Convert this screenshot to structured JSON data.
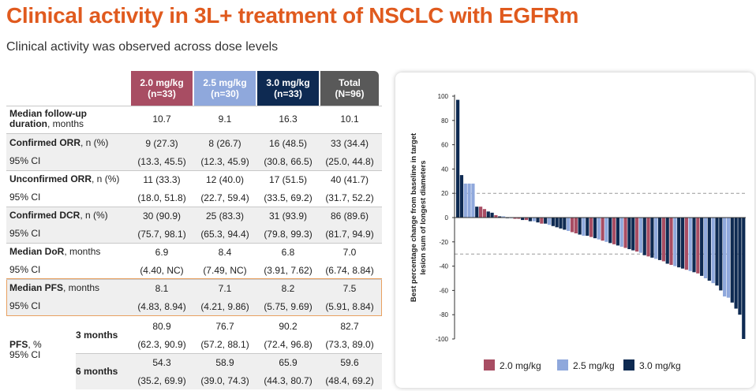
{
  "header": {
    "title": "Clinical activity in 3L+ treatment of NSCLC with EGFRm",
    "subtitle": "Clinical activity was observed across dose levels"
  },
  "table": {
    "columns": [
      {
        "line1": "2.0 mg/kg",
        "line2": "(n=33)",
        "color": "#A84D63"
      },
      {
        "line1": "2.5 mg/kg",
        "line2": "(n=30)",
        "color": "#8FA8DC"
      },
      {
        "line1": "3.0 mg/kg",
        "line2": "(n=33)",
        "color": "#0E2A52"
      },
      {
        "line1": "Total",
        "line2": "(N=96)",
        "color": "#595959"
      }
    ],
    "rows": {
      "followup": {
        "label_bold": "Median follow-up",
        "label_bold2": "duration",
        "label_rest": ", months",
        "values": [
          "10.7",
          "9.1",
          "16.3",
          "10.1"
        ]
      },
      "orr": {
        "label_bold": "Confirmed ORR",
        "label_rest": ", n (%)",
        "values": [
          "9 (27.3)",
          "8 (26.7)",
          "16 (48.5)",
          "33 (34.4)"
        ]
      },
      "orr_ci": {
        "label": "95% CI",
        "values": [
          "(13.3, 45.5)",
          "(12.3, 45.9)",
          "(30.8, 66.5)",
          "(25.0, 44.8)"
        ]
      },
      "uorr": {
        "label_bold": "Unconfirmed ORR",
        "label_rest": ", n (%)",
        "values": [
          "11 (33.3)",
          "12 (40.0)",
          "17 (51.5)",
          "40 (41.7)"
        ]
      },
      "uorr_ci": {
        "label": "95% CI",
        "values": [
          "(18.0, 51.8)",
          "(22.7, 59.4)",
          "(33.5, 69.2)",
          "(31.7, 52.2)"
        ]
      },
      "dcr": {
        "label_bold": "Confirmed DCR",
        "label_rest": ", n (%)",
        "values": [
          "30 (90.9)",
          "25 (83.3)",
          "31 (93.9)",
          "86 (89.6)"
        ]
      },
      "dcr_ci": {
        "label": "95% CI",
        "values": [
          "(75.7, 98.1)",
          "(65.3, 94.4)",
          "(79.8, 99.3)",
          "(81.7, 94.9)"
        ]
      },
      "dor": {
        "label_bold": "Median DoR",
        "label_rest": ", months",
        "values": [
          "6.9",
          "8.4",
          "6.8",
          "7.0"
        ]
      },
      "dor_ci": {
        "label": "95% CI",
        "values": [
          "(4.40, NC)",
          "(7.49, NC)",
          "(3.91, 7.62)",
          "(6.74, 8.84)"
        ]
      },
      "pfs": {
        "label_bold": "Median PFS",
        "label_rest": ", months",
        "values": [
          "8.1",
          "7.1",
          "8.2",
          "7.5"
        ]
      },
      "pfs_ci": {
        "label": "95% CI",
        "values": [
          "(4.83, 8.94)",
          "(4.21, 9.86)",
          "(5.75, 9.69)",
          "(5.91, 8.84)"
        ]
      },
      "pfs_group": {
        "label_bold": "PFS",
        "label_rest": ", %",
        "sublabel": "95% CI"
      },
      "pfs3": {
        "label": "3 months",
        "values": [
          "80.9",
          "76.7",
          "90.2",
          "82.7"
        ]
      },
      "pfs3_ci": {
        "values": [
          "(62.3, 90.9)",
          "(57.2, 88.1)",
          "(72.4, 96.8)",
          "(73.3, 89.0)"
        ]
      },
      "pfs6": {
        "label": "6 months",
        "values": [
          "54.3",
          "58.9",
          "65.9",
          "59.6"
        ]
      },
      "pfs6_ci": {
        "values": [
          "(35.2, 69.9)",
          "(39.0, 74.3)",
          "(44.3, 80.7)",
          "(48.4, 69.2)"
        ]
      }
    }
  },
  "chart_data": {
    "type": "bar",
    "subtype": "waterfall",
    "ylabel_line1": "Best percentage change from baseline in target",
    "ylabel_line2": "lesion sum of longest diameters",
    "ylim": [
      -100,
      100
    ],
    "yticks": [
      100,
      80,
      60,
      40,
      20,
      0,
      -20,
      -40,
      -60,
      -80,
      -100
    ],
    "reference_lines": [
      20,
      -30
    ],
    "colors": {
      "2.0 mg/kg": "#A84D63",
      "2.5 mg/kg": "#8FA8DC",
      "3.0 mg/kg": "#0E2A52"
    },
    "legend": [
      "2.0 mg/kg",
      "2.5 mg/kg",
      "3.0 mg/kg"
    ],
    "legend_position": "bottom",
    "bars": [
      {
        "dose": "3.0 mg/kg",
        "value": 97
      },
      {
        "dose": "3.0 mg/kg",
        "value": 35
      },
      {
        "dose": "2.5 mg/kg",
        "value": 28
      },
      {
        "dose": "2.5 mg/kg",
        "value": 28
      },
      {
        "dose": "2.5 mg/kg",
        "value": 28
      },
      {
        "dose": "3.0 mg/kg",
        "value": 9
      },
      {
        "dose": "2.0 mg/kg",
        "value": 9
      },
      {
        "dose": "2.0 mg/kg",
        "value": 7
      },
      {
        "dose": "3.0 mg/kg",
        "value": 5
      },
      {
        "dose": "3.0 mg/kg",
        "value": 4
      },
      {
        "dose": "2.0 mg/kg",
        "value": 2
      },
      {
        "dose": "3.0 mg/kg",
        "value": 1
      },
      {
        "dose": "2.5 mg/kg",
        "value": 1
      },
      {
        "dose": "3.0 mg/kg",
        "value": 0
      },
      {
        "dose": "2.5 mg/kg",
        "value": 0
      },
      {
        "dose": "2.0 mg/kg",
        "value": -1
      },
      {
        "dose": "2.0 mg/kg",
        "value": -1
      },
      {
        "dose": "3.0 mg/kg",
        "value": -2
      },
      {
        "dose": "2.0 mg/kg",
        "value": -2
      },
      {
        "dose": "3.0 mg/kg",
        "value": -3
      },
      {
        "dose": "2.5 mg/kg",
        "value": -3
      },
      {
        "dose": "3.0 mg/kg",
        "value": -4
      },
      {
        "dose": "2.0 mg/kg",
        "value": -5
      },
      {
        "dose": "3.0 mg/kg",
        "value": -5
      },
      {
        "dose": "2.5 mg/kg",
        "value": -6
      },
      {
        "dose": "3.0 mg/kg",
        "value": -7
      },
      {
        "dose": "3.0 mg/kg",
        "value": -8
      },
      {
        "dose": "3.0 mg/kg",
        "value": -9
      },
      {
        "dose": "3.0 mg/kg",
        "value": -10
      },
      {
        "dose": "2.5 mg/kg",
        "value": -11
      },
      {
        "dose": "2.0 mg/kg",
        "value": -12
      },
      {
        "dose": "2.0 mg/kg",
        "value": -13
      },
      {
        "dose": "3.0 mg/kg",
        "value": -14
      },
      {
        "dose": "2.5 mg/kg",
        "value": -15
      },
      {
        "dose": "3.0 mg/kg",
        "value": -15
      },
      {
        "dose": "2.0 mg/kg",
        "value": -16
      },
      {
        "dose": "3.0 mg/kg",
        "value": -17
      },
      {
        "dose": "2.5 mg/kg",
        "value": -18
      },
      {
        "dose": "2.0 mg/kg",
        "value": -19
      },
      {
        "dose": "2.5 mg/kg",
        "value": -20
      },
      {
        "dose": "3.0 mg/kg",
        "value": -21
      },
      {
        "dose": "2.0 mg/kg",
        "value": -22
      },
      {
        "dose": "3.0 mg/kg",
        "value": -23
      },
      {
        "dose": "2.5 mg/kg",
        "value": -24
      },
      {
        "dose": "2.0 mg/kg",
        "value": -25
      },
      {
        "dose": "3.0 mg/kg",
        "value": -26
      },
      {
        "dose": "3.0 mg/kg",
        "value": -27
      },
      {
        "dose": "2.0 mg/kg",
        "value": -28
      },
      {
        "dose": "2.5 mg/kg",
        "value": -29
      },
      {
        "dose": "3.0 mg/kg",
        "value": -31
      },
      {
        "dose": "2.0 mg/kg",
        "value": -32
      },
      {
        "dose": "3.0 mg/kg",
        "value": -33
      },
      {
        "dose": "2.5 mg/kg",
        "value": -34
      },
      {
        "dose": "3.0 mg/kg",
        "value": -35
      },
      {
        "dose": "2.0 mg/kg",
        "value": -36
      },
      {
        "dose": "3.0 mg/kg",
        "value": -38
      },
      {
        "dose": "2.0 mg/kg",
        "value": -39
      },
      {
        "dose": "2.5 mg/kg",
        "value": -40
      },
      {
        "dose": "3.0 mg/kg",
        "value": -41
      },
      {
        "dose": "3.0 mg/kg",
        "value": -42
      },
      {
        "dose": "2.0 mg/kg",
        "value": -43
      },
      {
        "dose": "2.5 mg/kg",
        "value": -44
      },
      {
        "dose": "3.0 mg/kg",
        "value": -45
      },
      {
        "dose": "2.0 mg/kg",
        "value": -46
      },
      {
        "dose": "3.0 mg/kg",
        "value": -48
      },
      {
        "dose": "2.5 mg/kg",
        "value": -50
      },
      {
        "dose": "3.0 mg/kg",
        "value": -52
      },
      {
        "dose": "2.5 mg/kg",
        "value": -54
      },
      {
        "dose": "3.0 mg/kg",
        "value": -56
      },
      {
        "dose": "3.0 mg/kg",
        "value": -60
      },
      {
        "dose": "2.5 mg/kg",
        "value": -65
      },
      {
        "dose": "2.5 mg/kg",
        "value": -66
      },
      {
        "dose": "3.0 mg/kg",
        "value": -70
      },
      {
        "dose": "3.0 mg/kg",
        "value": -75
      },
      {
        "dose": "3.0 mg/kg",
        "value": -80
      },
      {
        "dose": "3.0 mg/kg",
        "value": -100
      }
    ]
  }
}
